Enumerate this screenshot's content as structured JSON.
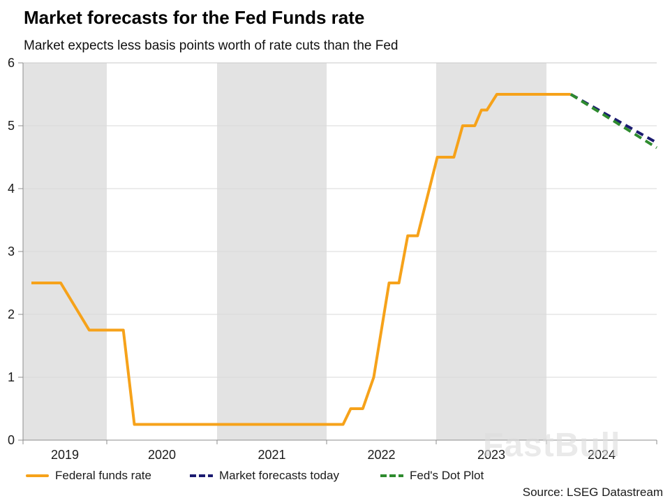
{
  "header": {
    "title": "Market forecasts for the Fed Funds rate",
    "subtitle": "Market expects less basis points worth of rate cuts than the Fed"
  },
  "source": "Source: LSEG Datastream",
  "watermark": "FastBull",
  "legend": {
    "items": [
      {
        "label": "Federal funds rate",
        "color": "#F6A21A",
        "style": "solid"
      },
      {
        "label": "Market forecasts today",
        "color": "#1B1B70",
        "style": "dashed"
      },
      {
        "label": "Fed's Dot Plot",
        "color": "#2E8B2E",
        "style": "dashed"
      }
    ]
  },
  "chart_data": {
    "type": "line",
    "title": "Market forecasts for the Fed Funds rate",
    "subtitle": "Market expects less basis points worth of rate cuts than the Fed",
    "xlabel": "",
    "ylabel": "",
    "xlim": [
      2019,
      2025
    ],
    "ylim": [
      0,
      6
    ],
    "grid": "horizontal",
    "legend_position": "bottom",
    "y_ticks": [
      0,
      1,
      2,
      3,
      4,
      5,
      6
    ],
    "y_tick_labels": [
      "0",
      "1",
      "2",
      "3",
      "4",
      "5",
      "6"
    ],
    "x_tick_years": [
      2019,
      2020,
      2021,
      2022,
      2023,
      2024
    ],
    "x_tick_labels": [
      "2019",
      "2020",
      "2021",
      "2022",
      "2023",
      "2024"
    ],
    "shaded_year_spans": [
      [
        2019,
        2020
      ],
      [
        2021,
        2022
      ],
      [
        2023,
        2024
      ]
    ],
    "band_color": "#E3E3E3",
    "gridline_color": "#D9D9D9",
    "axis_color": "#8C8C8C",
    "top_border_color": "#CACACA",
    "series": [
      {
        "name": "Federal funds rate",
        "color": "#F6A21A",
        "style": "solid",
        "points": [
          [
            2019.1,
            2.5
          ],
          [
            2019.45,
            2.5
          ],
          [
            2019.79,
            1.75
          ],
          [
            2020.15,
            1.75
          ],
          [
            2020.25,
            0.25
          ],
          [
            2022.15,
            0.25
          ],
          [
            2022.22,
            0.5
          ],
          [
            2022.33,
            0.5
          ],
          [
            2022.43,
            1.0
          ],
          [
            2022.57,
            2.5
          ],
          [
            2022.66,
            2.5
          ],
          [
            2022.74,
            3.25
          ],
          [
            2022.83,
            3.25
          ],
          [
            2023.01,
            4.5
          ],
          [
            2023.16,
            4.5
          ],
          [
            2023.24,
            5.0
          ],
          [
            2023.35,
            5.0
          ],
          [
            2023.41,
            5.25
          ],
          [
            2023.46,
            5.25
          ],
          [
            2023.55,
            5.5
          ],
          [
            2024.22,
            5.5
          ]
        ]
      },
      {
        "name": "Market forecasts today",
        "color": "#1B1B70",
        "style": "dashed",
        "points": [
          [
            2024.22,
            5.5
          ],
          [
            2025.0,
            4.73
          ]
        ]
      },
      {
        "name": "Fed's Dot Plot",
        "color": "#2E8B2E",
        "style": "dashed",
        "points": [
          [
            2024.22,
            5.5
          ],
          [
            2025.0,
            4.65
          ]
        ]
      }
    ]
  }
}
